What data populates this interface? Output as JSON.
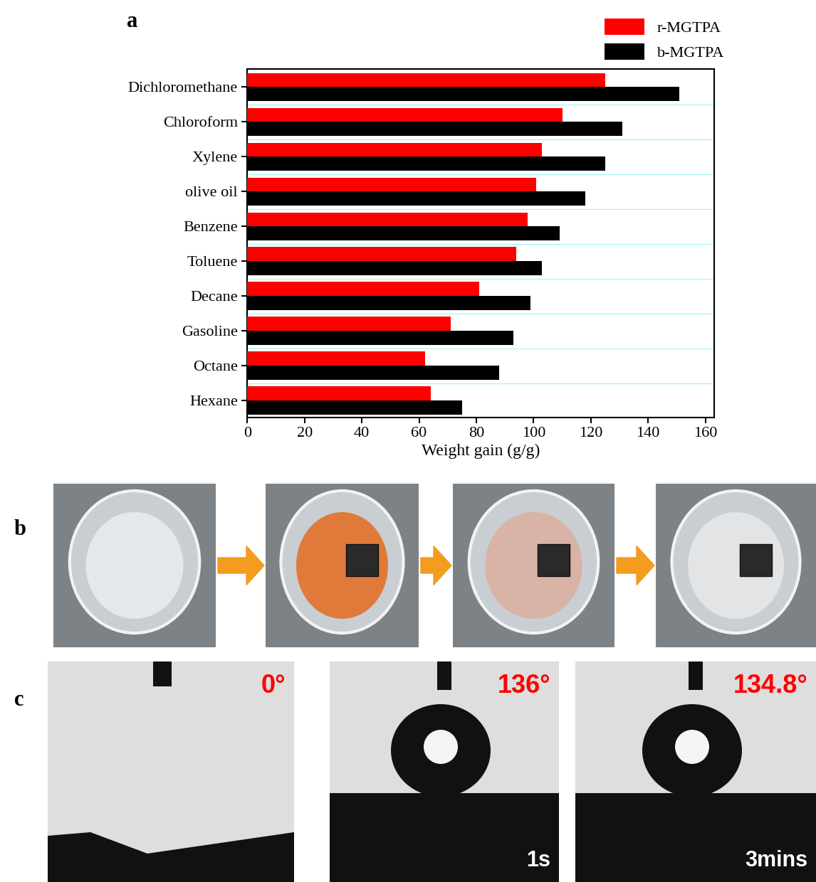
{
  "chart_data": {
    "type": "bar",
    "panel_label": "a",
    "orientation": "horizontal",
    "categories": [
      "Dichloromethane",
      "Chloroform",
      "Xylene",
      "olive oil",
      "Benzene",
      "Toluene",
      "Decane",
      "Gasoline",
      "Octane",
      "Hexane"
    ],
    "series": [
      {
        "name": "r-MGTPA",
        "color": "#ff0000",
        "values": [
          125,
          110,
          103,
          101,
          98,
          94,
          81,
          71,
          62,
          64
        ]
      },
      {
        "name": "b-MGTPA",
        "color": "#000000",
        "values": [
          151,
          131,
          125,
          118,
          109,
          103,
          99,
          93,
          88,
          75
        ]
      }
    ],
    "xlabel": "Weight gain (g/g)",
    "xlim": [
      0,
      163
    ],
    "xticks": [
      0,
      20,
      40,
      60,
      80,
      100,
      120,
      140,
      160
    ],
    "grid": true,
    "legend": "upper right"
  },
  "panel_b": {
    "label": "b"
  },
  "panel_c": {
    "label": "c",
    "images": [
      {
        "angle": "0°"
      },
      {
        "angle": "136°",
        "time": "1s"
      },
      {
        "angle": "134.8°",
        "time": "3mins"
      }
    ]
  }
}
